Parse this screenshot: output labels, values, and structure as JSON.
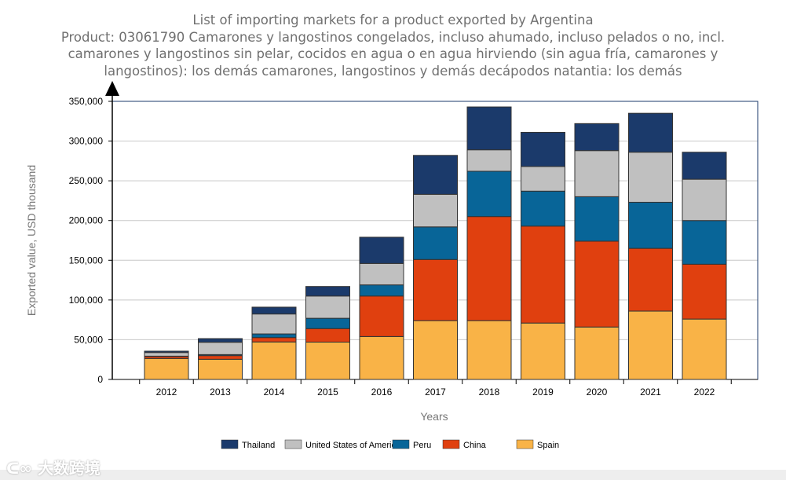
{
  "chart_data": {
    "type": "bar",
    "stacked": true,
    "title_lines": [
      "List of importing markets for a product exported by Argentina",
      "Product: 03061790 Camarones y langostinos congelados, incluso ahumado, incluso pelados o no, incl.",
      "camarones y langostinos sin pelar, cocidos en agua o en agua hirviendo (sin agua fría, camarones y",
      "langostinos): los demás camarones, langostinos y demás decápodos natantia: los demás"
    ],
    "xlabel": "Years",
    "ylabel": "Exported value, USD thousand",
    "ylim": [
      0,
      350000
    ],
    "yticks": [
      0,
      50000,
      100000,
      150000,
      200000,
      250000,
      300000,
      350000
    ],
    "ytick_labels": [
      "0",
      "50,000",
      "100,000",
      "150,000",
      "200,000",
      "250,000",
      "300,000",
      "350,000"
    ],
    "grid": true,
    "legend_position": "bottom",
    "categories": [
      "2012",
      "2013",
      "2014",
      "2015",
      "2016",
      "2017",
      "2018",
      "2019",
      "2020",
      "2021",
      "2022"
    ],
    "series": [
      {
        "name": "Spain",
        "color": "#f9b347",
        "values": [
          26400,
          25400,
          47200,
          47000,
          54000,
          74000,
          74000,
          71000,
          66000,
          86000,
          76000
        ]
      },
      {
        "name": "China",
        "color": "#e0400f",
        "values": [
          2600,
          4600,
          5500,
          17000,
          51000,
          77000,
          131000,
          122000,
          108000,
          79000,
          69000
        ]
      },
      {
        "name": "Peru",
        "color": "#086598",
        "values": [
          300,
          1300,
          4600,
          13000,
          14000,
          41000,
          57000,
          44000,
          56000,
          58000,
          55000
        ]
      },
      {
        "name": "United States of America",
        "color": "#c0c0c0",
        "values": [
          4600,
          15500,
          25100,
          28000,
          27000,
          41000,
          27000,
          31000,
          58000,
          63000,
          52000
        ]
      },
      {
        "name": "Thailand",
        "color": "#1b3a6b",
        "values": [
          1700,
          4600,
          8600,
          12000,
          33000,
          49000,
          54000,
          43000,
          34000,
          49000,
          34000
        ]
      }
    ],
    "legend_order": [
      "Thailand",
      "United States of America",
      "Peru",
      "China",
      "Spain"
    ]
  },
  "watermark": "大数跨境"
}
